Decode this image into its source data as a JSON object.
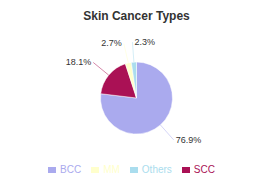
{
  "chart_data": {
    "type": "pie",
    "title": "Skin Cancer Types",
    "categories": [
      "BCC",
      "SCC",
      "MM",
      "Others"
    ],
    "values": [
      76.9,
      18.1,
      2.7,
      2.3
    ],
    "value_labels": [
      "76.9%",
      "18.1%",
      "2.7%",
      "2.3%"
    ],
    "colors": [
      "#aaaaee",
      "#aa1155",
      "#ffffcc",
      "#aaddee"
    ],
    "data_labels": true,
    "legend": "bottom"
  }
}
